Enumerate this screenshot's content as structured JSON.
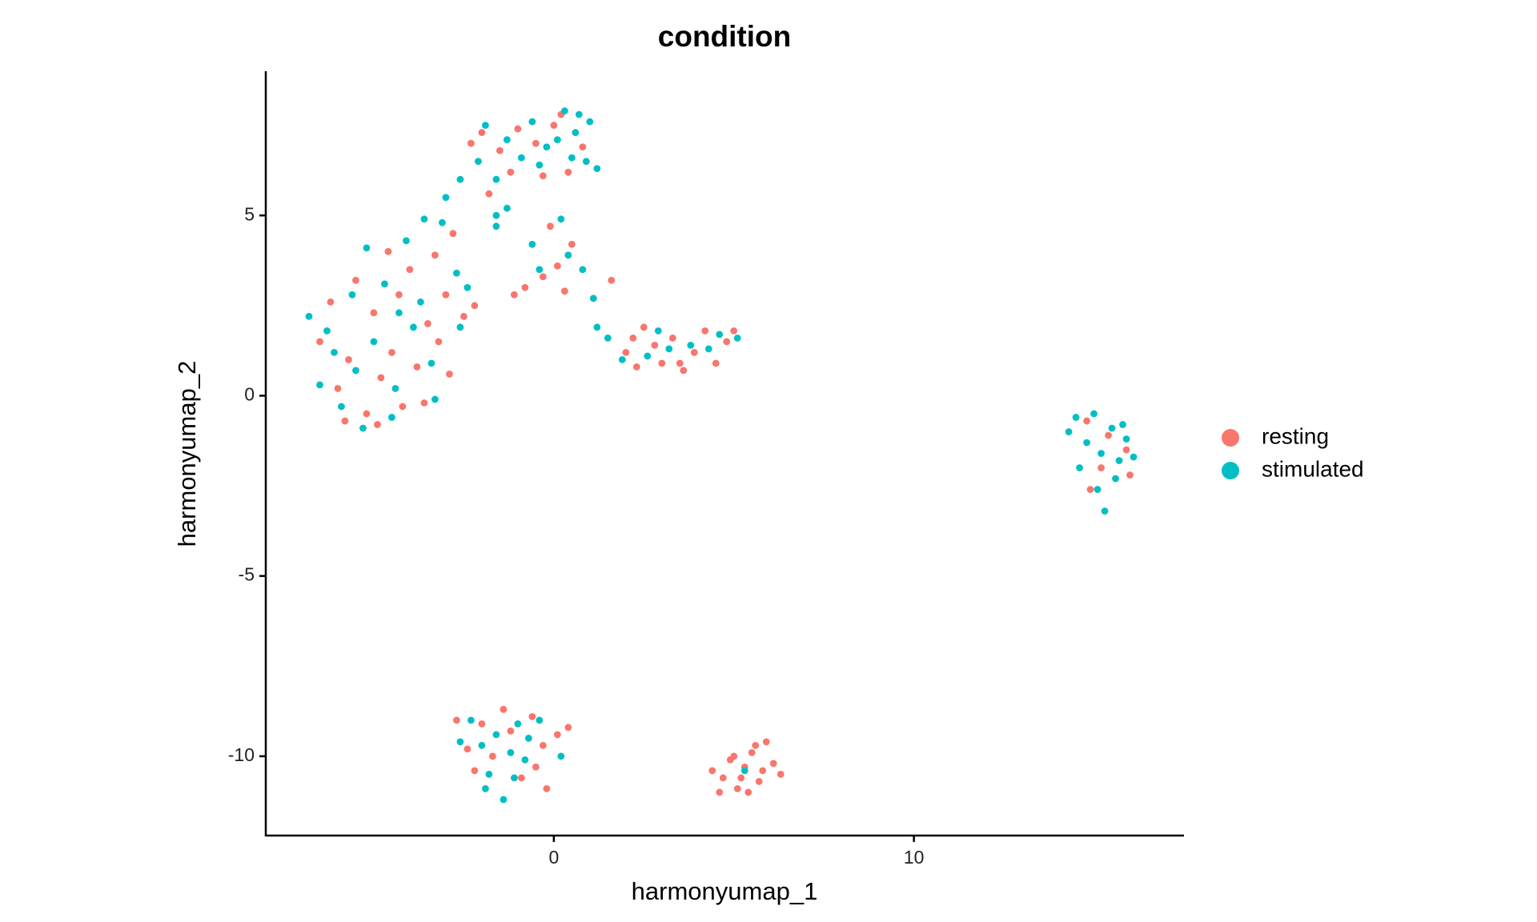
{
  "chart_data": {
    "type": "scatter",
    "title": "condition",
    "x_label": "harmonyumap_1",
    "y_label": "harmonyumap_2",
    "xlim": [
      -8.0,
      17.5
    ],
    "ylim": [
      -12.2,
      9.0
    ],
    "xticks": [
      0,
      10
    ],
    "yticks": [
      -10,
      -5,
      0,
      5
    ],
    "grid": false,
    "legend": "right",
    "series": [
      {
        "name": "resting",
        "color": "#F8766D",
        "x": [
          -6.5,
          -6.0,
          -5.8,
          -5.2,
          -4.8,
          -4.5,
          -4.2,
          -3.8,
          -3.5,
          -3.2,
          -2.9,
          -3.0,
          -2.5,
          -4.0,
          -4.6,
          -5.5,
          -6.2,
          -5.0,
          -3.6,
          -4.9,
          -2.8,
          -2.2,
          -3.3,
          -5.7,
          -4.3,
          -2.0,
          -1.5,
          -1.0,
          -0.5,
          0.0,
          0.4,
          -1.8,
          0.8,
          -0.3,
          -2.3,
          0.2,
          -1.2,
          -0.8,
          -0.3,
          0.3,
          -0.1,
          0.5,
          1.6,
          -1.1,
          0.1,
          2.0,
          2.3,
          2.5,
          2.8,
          3.0,
          3.3,
          3.6,
          3.9,
          4.2,
          4.5,
          4.8,
          5.0,
          2.2,
          3.5,
          14.8,
          15.4,
          15.9,
          14.9,
          15.2,
          16.0,
          -2.7,
          -2.4,
          -2.2,
          -1.7,
          -1.2,
          -0.9,
          -0.6,
          -0.3,
          0.1,
          -0.5,
          -1.4,
          -0.2,
          0.4,
          -2.0,
          4.4,
          4.7,
          4.9,
          5.1,
          5.3,
          5.5,
          5.7,
          5.9,
          6.1,
          5.4,
          5.0,
          5.8,
          6.3,
          4.6,
          5.6,
          5.2
        ],
        "y": [
          1.5,
          0.2,
          -0.7,
          -0.5,
          0.5,
          1.2,
          -0.3,
          0.8,
          2.0,
          1.5,
          0.6,
          2.8,
          2.2,
          3.5,
          4.0,
          3.2,
          2.6,
          2.3,
          -0.2,
          -0.8,
          4.5,
          2.5,
          3.9,
          1.0,
          2.8,
          7.3,
          6.8,
          7.4,
          7.0,
          7.5,
          6.2,
          5.6,
          6.9,
          6.1,
          7.0,
          7.8,
          6.2,
          3.0,
          3.3,
          2.9,
          4.7,
          4.2,
          3.2,
          2.8,
          3.6,
          1.2,
          0.8,
          1.9,
          1.4,
          0.9,
          1.6,
          0.7,
          1.2,
          1.8,
          0.9,
          1.5,
          1.8,
          1.6,
          0.9,
          -0.7,
          -1.1,
          -1.5,
          -2.6,
          -2.0,
          -2.2,
          -9.0,
          -9.8,
          -10.4,
          -10.0,
          -9.3,
          -10.6,
          -8.9,
          -9.7,
          -9.4,
          -10.3,
          -8.7,
          -10.9,
          -9.2,
          -9.1,
          -10.4,
          -10.6,
          -10.1,
          -10.9,
          -10.3,
          -9.9,
          -10.7,
          -9.6,
          -10.2,
          -11.0,
          -10.0,
          -10.4,
          -10.5,
          -11.0,
          -9.7,
          -10.6
        ]
      },
      {
        "name": "stimulated",
        "color": "#00BFC4",
        "x": [
          -6.8,
          -6.5,
          -6.1,
          -5.6,
          -5.3,
          -5.0,
          -4.7,
          -4.4,
          -4.1,
          -3.9,
          -3.7,
          -3.4,
          -3.1,
          -2.7,
          -2.4,
          -5.9,
          -4.5,
          -5.2,
          -6.3,
          -3.3,
          -4.3,
          -2.6,
          -5.5,
          -3.0,
          -3.6,
          -2.1,
          -1.9,
          -1.6,
          -1.3,
          -0.9,
          -0.6,
          -0.2,
          0.1,
          0.3,
          0.6,
          0.9,
          1.2,
          1.0,
          -0.4,
          0.5,
          -1.6,
          -2.6,
          0.7,
          -1.6,
          -1.3,
          -0.6,
          0.2,
          0.4,
          0.8,
          1.1,
          1.2,
          1.5,
          -0.4,
          1.9,
          2.6,
          3.2,
          3.8,
          4.3,
          4.6,
          5.1,
          2.9,
          14.3,
          14.5,
          14.8,
          15.0,
          15.2,
          15.5,
          15.7,
          15.9,
          16.1,
          15.1,
          15.3,
          14.6,
          15.6,
          15.8,
          -2.6,
          -2.3,
          -2.0,
          -1.8,
          -1.6,
          -1.4,
          -1.2,
          -1.0,
          -0.8,
          -0.7,
          -1.9,
          0.2,
          -0.4,
          -1.1,
          5.3
        ],
        "y": [
          2.2,
          0.3,
          1.2,
          2.8,
          -0.9,
          1.5,
          3.1,
          0.2,
          4.3,
          1.9,
          2.6,
          0.9,
          4.8,
          3.4,
          3.0,
          -0.3,
          -0.6,
          4.1,
          1.8,
          -0.1,
          2.3,
          1.9,
          0.7,
          5.5,
          4.9,
          6.5,
          7.5,
          6.0,
          7.1,
          6.6,
          7.6,
          6.9,
          7.1,
          7.9,
          7.3,
          6.5,
          6.3,
          7.6,
          6.4,
          6.6,
          5.0,
          6.0,
          7.8,
          4.7,
          5.2,
          4.2,
          4.9,
          3.9,
          3.5,
          2.7,
          1.9,
          1.6,
          3.5,
          1.0,
          1.1,
          1.3,
          1.4,
          1.3,
          1.7,
          1.6,
          1.8,
          -1.0,
          -0.6,
          -1.3,
          -0.5,
          -1.6,
          -0.9,
          -1.8,
          -1.2,
          -1.7,
          -2.6,
          -3.2,
          -2.0,
          -2.3,
          -0.8,
          -9.6,
          -9.0,
          -9.7,
          -10.5,
          -9.4,
          -11.2,
          -9.9,
          -9.1,
          -10.1,
          -9.5,
          -10.9,
          -10.0,
          -9.0,
          -10.6,
          -10.4
        ]
      }
    ]
  }
}
